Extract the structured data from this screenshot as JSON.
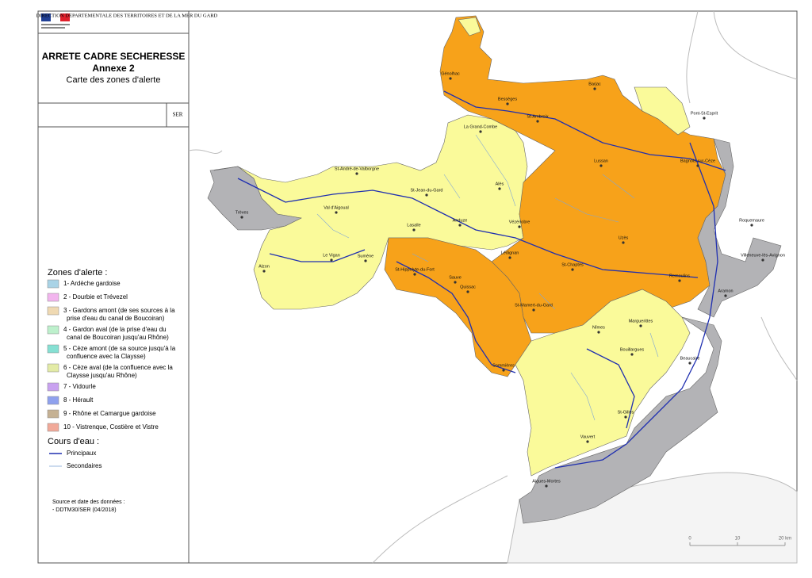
{
  "header": {
    "agency": "DIRECTION DEPARTEMENTALE DES TERRITOIRES ET DE LA MER DU GARD",
    "title": "ARRETE CADRE SECHERESSE",
    "subtitle": "Annexe 2",
    "map_title": "Carte des zones d'alerte",
    "service": "SER"
  },
  "legend": {
    "zones_title": "Zones d'alerte :",
    "zones": [
      {
        "label": "1- Ardèche gardoise",
        "color": "#a9d3e6"
      },
      {
        "label": "2 - Dourbie et Trévezel",
        "color": "#f2b5ee"
      },
      {
        "label": "3 - Gardons amont (de ses sources à la prise d'eau du canal de Boucoiran)",
        "color": "#efd9b2"
      },
      {
        "label": "4 - Gardon aval (de la prise d'eau du canal de Boucoiran jusqu'au Rhône)",
        "color": "#bdf0cc"
      },
      {
        "label": "5 - Cèze amont (de sa source jusqu'à la confluence avec la Claysse)",
        "color": "#86e0d3"
      },
      {
        "label": "6 - Cèze aval (de la confluence avec la Claysse jusqu'au Rhône)",
        "color": "#e3eba6"
      },
      {
        "label": "7 - Vidourle",
        "color": "#c9a2f0"
      },
      {
        "label": "8 - Hérault",
        "color": "#8fa1ee"
      },
      {
        "label": "9 - Rhône et Camargue gardoise",
        "color": "#c5b193"
      },
      {
        "label": "10 - Vistrenque, Costière et Vistre",
        "color": "#f1a999"
      }
    ],
    "rivers_title": "Cours d'eau :",
    "rivers": [
      {
        "label": "Principaux",
        "color": "#1f2fb0"
      },
      {
        "label": "Secondaires",
        "color": "#7fa6d6"
      }
    ]
  },
  "source": {
    "title": "Source et date des données :",
    "text": "- DDTM30/SER (04/2018)"
  },
  "places": [
    "Génolhac",
    "Bessèges",
    "Barjac",
    "St-Ambroix",
    "Pont-St-Esprit",
    "La Grand-Combe",
    "Bagnols-sur-Cèze",
    "Lussan",
    "St-André-de-Valborgne",
    "St-Jean-du-Gard",
    "Alès",
    "Trèves",
    "Val d'Aigoual",
    "Lasalle",
    "Anduze",
    "Vézénobre",
    "Roquemaure",
    "Uzès",
    "Villeneuve-lès-Avignon",
    "Alzon",
    "Le Vigan",
    "Sumène",
    "Lédignan",
    "St-Chaptes",
    "Remoulins",
    "St-Hippolyte-du-Fort",
    "Sauve",
    "Quissac",
    "Aramon",
    "St-Mamert-du-Gard",
    "Nîmes",
    "Marguerittes",
    "Bouillargues",
    "Beaucaire",
    "Sommières",
    "St-Gilles",
    "Vauvert",
    "Aigues-Mortes"
  ],
  "scale": {
    "labels": [
      "0",
      "10",
      "20 km"
    ]
  }
}
